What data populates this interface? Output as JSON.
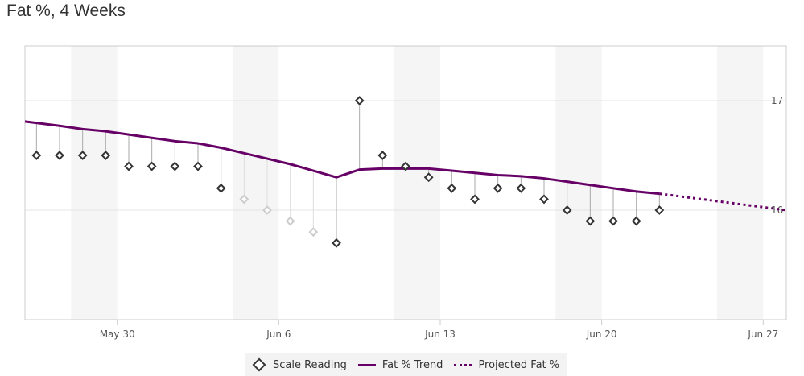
{
  "chart_data": {
    "type": "line",
    "title": "Fat %, 4 Weeks",
    "x_start": "May 26",
    "x_range_days": [
      0,
      33
    ],
    "ylim": [
      15,
      17.5
    ],
    "y_ticks": [
      {
        "value": 17,
        "label": "17"
      },
      {
        "value": 16,
        "label": "16"
      }
    ],
    "x_ticks": [
      {
        "day": 4,
        "label": "May 30"
      },
      {
        "day": 11,
        "label": "Jun 6"
      },
      {
        "day": 18,
        "label": "Jun 13"
      },
      {
        "day": 25,
        "label": "Jun 20"
      },
      {
        "day": 32,
        "label": "Jun 27"
      }
    ],
    "weekend_bands": [
      [
        2,
        4
      ],
      [
        9,
        11
      ],
      [
        16,
        18
      ],
      [
        23,
        25
      ],
      [
        30,
        32
      ]
    ],
    "series": [
      {
        "name": "Scale Reading",
        "style": "diamond",
        "points": [
          {
            "day": 0.5,
            "value": 16.5,
            "faded": false
          },
          {
            "day": 1.5,
            "value": 16.5,
            "faded": false
          },
          {
            "day": 2.5,
            "value": 16.5,
            "faded": false
          },
          {
            "day": 3.5,
            "value": 16.5,
            "faded": false
          },
          {
            "day": 4.5,
            "value": 16.4,
            "faded": false
          },
          {
            "day": 5.5,
            "value": 16.4,
            "faded": false
          },
          {
            "day": 6.5,
            "value": 16.4,
            "faded": false
          },
          {
            "day": 7.5,
            "value": 16.4,
            "faded": false
          },
          {
            "day": 8.5,
            "value": 16.2,
            "faded": false
          },
          {
            "day": 9.5,
            "value": 16.1,
            "faded": true
          },
          {
            "day": 10.5,
            "value": 16.0,
            "faded": true
          },
          {
            "day": 11.5,
            "value": 15.9,
            "faded": true
          },
          {
            "day": 12.5,
            "value": 15.8,
            "faded": true
          },
          {
            "day": 13.5,
            "value": 15.7,
            "faded": false
          },
          {
            "day": 14.5,
            "value": 17.0,
            "faded": false
          },
          {
            "day": 15.5,
            "value": 16.5,
            "faded": false
          },
          {
            "day": 16.5,
            "value": 16.4,
            "faded": false
          },
          {
            "day": 17.5,
            "value": 16.3,
            "faded": false
          },
          {
            "day": 18.5,
            "value": 16.2,
            "faded": false
          },
          {
            "day": 19.5,
            "value": 16.1,
            "faded": false
          },
          {
            "day": 20.5,
            "value": 16.2,
            "faded": false
          },
          {
            "day": 21.5,
            "value": 16.2,
            "faded": false
          },
          {
            "day": 22.5,
            "value": 16.1,
            "faded": false
          },
          {
            "day": 23.5,
            "value": 16.0,
            "faded": false
          },
          {
            "day": 24.5,
            "value": 15.9,
            "faded": false
          },
          {
            "day": 25.5,
            "value": 15.9,
            "faded": false
          },
          {
            "day": 26.5,
            "value": 15.9,
            "faded": false
          },
          {
            "day": 27.5,
            "value": 16.0,
            "faded": false
          }
        ]
      },
      {
        "name": "Fat % Trend",
        "style": "solid",
        "color": "#660066",
        "points": [
          {
            "day": 0,
            "value": 16.81
          },
          {
            "day": 1.5,
            "value": 16.77
          },
          {
            "day": 2.5,
            "value": 16.74
          },
          {
            "day": 3.5,
            "value": 16.72
          },
          {
            "day": 4.5,
            "value": 16.69
          },
          {
            "day": 5.5,
            "value": 16.66
          },
          {
            "day": 6.5,
            "value": 16.63
          },
          {
            "day": 7.5,
            "value": 16.61
          },
          {
            "day": 8.5,
            "value": 16.57
          },
          {
            "day": 9.5,
            "value": 16.52
          },
          {
            "day": 10.5,
            "value": 16.47
          },
          {
            "day": 11.5,
            "value": 16.42
          },
          {
            "day": 12.5,
            "value": 16.36
          },
          {
            "day": 13.5,
            "value": 16.3
          },
          {
            "day": 14.5,
            "value": 16.37
          },
          {
            "day": 15.5,
            "value": 16.38
          },
          {
            "day": 16.5,
            "value": 16.38
          },
          {
            "day": 17.5,
            "value": 16.38
          },
          {
            "day": 18.5,
            "value": 16.36
          },
          {
            "day": 19.5,
            "value": 16.34
          },
          {
            "day": 20.5,
            "value": 16.32
          },
          {
            "day": 21.5,
            "value": 16.31
          },
          {
            "day": 22.5,
            "value": 16.29
          },
          {
            "day": 23.5,
            "value": 16.26
          },
          {
            "day": 24.5,
            "value": 16.23
          },
          {
            "day": 25.5,
            "value": 16.2
          },
          {
            "day": 26.5,
            "value": 16.17
          },
          {
            "day": 27.5,
            "value": 16.15
          }
        ]
      },
      {
        "name": "Projected Fat %",
        "style": "dotted",
        "color": "#660066",
        "points": [
          {
            "day": 27.5,
            "value": 16.15
          },
          {
            "day": 33,
            "value": 16.0
          }
        ]
      }
    ],
    "legend": {
      "position": "bottom-center",
      "items": [
        "Scale Reading",
        "Fat % Trend",
        "Projected Fat %"
      ]
    }
  }
}
